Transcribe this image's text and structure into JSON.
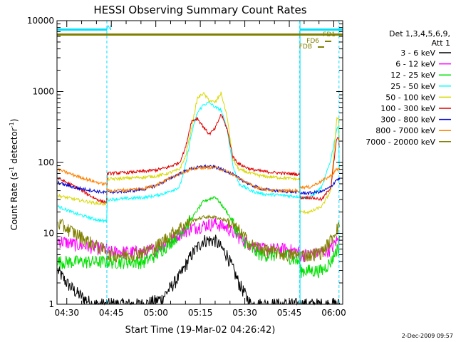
{
  "chart_data": {
    "type": "line",
    "title": "HESSI Observing Summary Count Rates",
    "xlabel": "Start Time (19-Mar-02 04:26:42)",
    "ylabel": "Count Rate (s⁻¹ detector⁻¹)",
    "ylabel_main": "Count Rate (s",
    "ylabel_sup1": "-1",
    "ylabel_mid": " detector",
    "ylabel_sup2": "-1",
    "ylabel_end": ")",
    "y_scale": "log",
    "ylim": [
      1,
      10000
    ],
    "xlim": [
      "04:26:42",
      "06:03:00"
    ],
    "x_ticks": [
      "04:30",
      "04:45",
      "05:00",
      "05:15",
      "05:30",
      "05:45",
      "06:00"
    ],
    "y_ticks": [
      "1",
      "10",
      "100",
      "1000",
      "10000"
    ],
    "timestamp": "2-Dec-2009 09:57",
    "legend": {
      "position": "right",
      "header1": "Det 1,3,4,5,6,9,",
      "header2": "Att 1",
      "entries": [
        {
          "label": "3 - 6 keV",
          "color": "#000000"
        },
        {
          "label": "6 - 12 keV",
          "color": "#ff00ff"
        },
        {
          "label": "12 - 25 keV",
          "color": "#00e000"
        },
        {
          "label": "25 - 50 keV",
          "color": "#00ffff"
        },
        {
          "label": "50 - 100 keV",
          "color": "#d8d800"
        },
        {
          "label": "100 - 300 keV",
          "color": "#e00000"
        },
        {
          "label": "300 - 800 keV",
          "color": "#0000d0"
        },
        {
          "label": "800 - 7000 keV",
          "color": "#ff8000"
        },
        {
          "label": "7000 - 20000 keV",
          "color": "#808000"
        }
      ]
    },
    "flags": [
      {
        "label": "N",
        "color": "#00e0ff"
      },
      {
        "label": "FD1",
        "color": "#808000"
      },
      {
        "label": "FD6",
        "color": "#808000"
      },
      {
        "label": "FDB",
        "color": "#808000"
      }
    ],
    "night_boundaries": [
      "04:43:30",
      "05:48:30",
      "06:01:45"
    ],
    "series": [
      {
        "name": "3 - 6 keV",
        "color": "#000000",
        "x": [
          "04:27",
          "04:30",
          "04:33",
          "04:36",
          "04:39",
          "04:42",
          "04:44",
          "04:50",
          "04:56",
          "05:02",
          "05:08",
          "05:12",
          "05:16",
          "05:20",
          "05:24",
          "05:28",
          "05:32",
          "05:36",
          "05:40",
          "05:44",
          "05:48",
          "05:52",
          "05:56",
          "06:00",
          "06:01",
          "06:02"
        ],
        "values": [
          3,
          2,
          1.5,
          1.2,
          1,
          1,
          1,
          1,
          1,
          1.2,
          2.5,
          5,
          8,
          8,
          5,
          2,
          1,
          1,
          1,
          1,
          1,
          1,
          1,
          1,
          1,
          1
        ]
      },
      {
        "name": "6 - 12 keV",
        "color": "#ff00ff",
        "x": [
          "04:27",
          "04:33",
          "04:39",
          "04:42",
          "04:44",
          "04:50",
          "04:56",
          "05:00",
          "05:04",
          "05:08",
          "05:12",
          "05:16",
          "05:20",
          "05:24",
          "05:28",
          "05:32",
          "05:36",
          "05:40",
          "05:44",
          "05:48",
          "05:52",
          "05:56",
          "05:59",
          "06:01",
          "06:02"
        ],
        "values": [
          8,
          7,
          6.5,
          6,
          5.5,
          5.5,
          5.5,
          6,
          7.5,
          10,
          12,
          13,
          14,
          12,
          9,
          7,
          6,
          6,
          6,
          5.5,
          5,
          5.5,
          6,
          8,
          10
        ]
      },
      {
        "name": "12 - 25 keV",
        "color": "#00e000",
        "x": [
          "04:27",
          "04:33",
          "04:39",
          "04:42",
          "04:44",
          "04:50",
          "04:56",
          "05:00",
          "05:04",
          "05:08",
          "05:12",
          "05:16",
          "05:20",
          "05:24",
          "05:28",
          "05:32",
          "05:36",
          "05:40",
          "05:44",
          "05:48",
          "05:52",
          "05:56",
          "05:59",
          "06:01",
          "06:02"
        ],
        "values": [
          4,
          4,
          4,
          4,
          4,
          4,
          4,
          5,
          7,
          10,
          16,
          28,
          33,
          20,
          10,
          6,
          5,
          5,
          5,
          4,
          3,
          3,
          4,
          6,
          9
        ]
      },
      {
        "name": "25 - 50 keV",
        "color": "#00ffff",
        "x": [
          "04:27",
          "04:33",
          "04:39",
          "04:42",
          "04:44",
          "04:50",
          "04:56",
          "05:00",
          "05:04",
          "05:08",
          "05:10",
          "05:12",
          "05:14",
          "05:16",
          "05:18",
          "05:20",
          "05:22",
          "05:24",
          "05:26",
          "05:28",
          "05:32",
          "05:36",
          "05:40",
          "05:44",
          "05:48",
          "05:52",
          "05:56",
          "05:59",
          "06:01",
          "06:02"
        ],
        "values": [
          24,
          19,
          16,
          15,
          30,
          31,
          32,
          34,
          38,
          45,
          90,
          250,
          500,
          650,
          700,
          600,
          550,
          300,
          90,
          50,
          40,
          36,
          35,
          34,
          33,
          32,
          45,
          110,
          300,
          90
        ]
      },
      {
        "name": "50 - 100 keV",
        "color": "#d8d800",
        "x": [
          "04:27",
          "04:33",
          "04:39",
          "04:42",
          "04:44",
          "04:50",
          "04:56",
          "05:00",
          "05:04",
          "05:08",
          "05:10",
          "05:12",
          "05:14",
          "05:16",
          "05:18",
          "05:20",
          "05:22",
          "05:24",
          "05:26",
          "05:28",
          "05:32",
          "05:36",
          "05:40",
          "05:44",
          "05:48",
          "05:52",
          "05:56",
          "05:59",
          "06:01",
          "06:02"
        ],
        "values": [
          34,
          30,
          27,
          26,
          58,
          60,
          62,
          64,
          70,
          80,
          120,
          300,
          800,
          950,
          750,
          700,
          950,
          450,
          110,
          80,
          70,
          64,
          62,
          60,
          58,
          20,
          24,
          40,
          420,
          200
        ]
      },
      {
        "name": "100 - 300 keV",
        "color": "#e00000",
        "x": [
          "04:27",
          "04:33",
          "04:39",
          "04:42",
          "04:44",
          "04:50",
          "04:56",
          "05:00",
          "05:04",
          "05:08",
          "05:10",
          "05:12",
          "05:14",
          "05:16",
          "05:18",
          "05:20",
          "05:22",
          "05:24",
          "05:26",
          "05:28",
          "05:32",
          "05:36",
          "05:40",
          "05:44",
          "05:48",
          "05:52",
          "05:56",
          "05:59",
          "06:01",
          "06:02"
        ],
        "values": [
          60,
          45,
          32,
          28,
          70,
          72,
          75,
          78,
          85,
          100,
          160,
          380,
          420,
          320,
          250,
          300,
          480,
          300,
          120,
          95,
          80,
          75,
          72,
          70,
          68,
          32,
          30,
          45,
          220,
          160
        ]
      },
      {
        "name": "300 - 800 keV",
        "color": "#0000d0",
        "x": [
          "04:27",
          "04:33",
          "04:39",
          "04:42",
          "04:44",
          "04:50",
          "04:56",
          "05:00",
          "05:04",
          "05:08",
          "05:12",
          "05:16",
          "05:20",
          "05:24",
          "05:28",
          "05:32",
          "05:36",
          "05:40",
          "05:44",
          "05:48",
          "05:52",
          "05:56",
          "05:59",
          "06:01",
          "06:02"
        ],
        "values": [
          52,
          44,
          40,
          38,
          38,
          39,
          42,
          47,
          57,
          70,
          82,
          88,
          86,
          75,
          60,
          48,
          42,
          40,
          39,
          38,
          37,
          39,
          45,
          58,
          58
        ]
      },
      {
        "name": "800 - 7000 keV",
        "color": "#ff8000",
        "x": [
          "04:27",
          "04:33",
          "04:39",
          "04:42",
          "04:44",
          "04:50",
          "04:56",
          "05:00",
          "05:04",
          "05:08",
          "05:12",
          "05:16",
          "05:20",
          "05:24",
          "05:28",
          "05:32",
          "05:36",
          "05:40",
          "05:44",
          "05:48",
          "05:52",
          "05:56",
          "05:59",
          "06:01",
          "06:02"
        ],
        "values": [
          80,
          65,
          54,
          50,
          40,
          41,
          43,
          48,
          58,
          70,
          80,
          85,
          85,
          75,
          60,
          48,
          42,
          40,
          40,
          40,
          45,
          55,
          65,
          80,
          82
        ]
      },
      {
        "name": "7000 - 20000 keV",
        "color": "#808000",
        "x": [
          "04:27",
          "04:33",
          "04:39",
          "04:42",
          "04:44",
          "04:50",
          "04:56",
          "05:00",
          "05:04",
          "05:08",
          "05:12",
          "05:16",
          "05:20",
          "05:24",
          "05:28",
          "05:32",
          "05:36",
          "05:40",
          "05:44",
          "05:48",
          "05:52",
          "05:56",
          "05:59",
          "06:01",
          "06:02"
        ],
        "values": [
          14,
          10,
          7,
          6,
          5,
          5,
          5.5,
          6.5,
          9,
          12,
          15,
          17,
          17,
          15,
          11,
          7,
          6,
          5.5,
          5,
          5,
          5,
          5.5,
          8,
          12,
          14
        ]
      }
    ]
  }
}
